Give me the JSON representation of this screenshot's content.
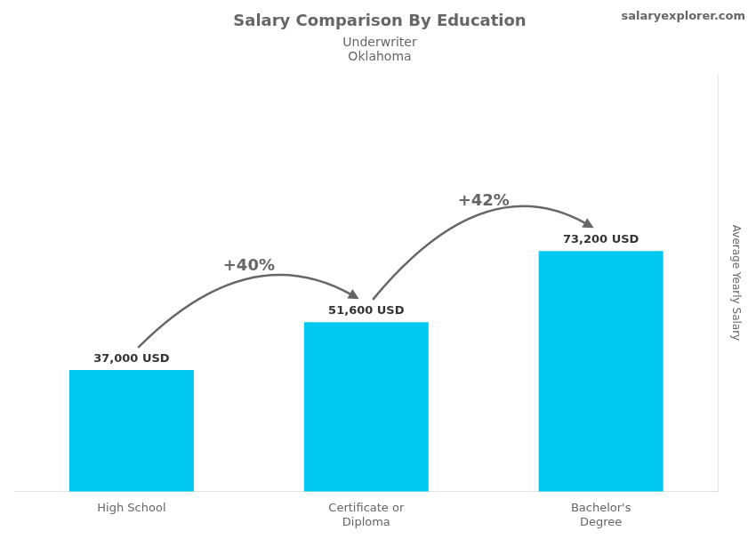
{
  "chart_data": {
    "type": "bar",
    "title": "Salary Comparison By Education",
    "subtitle": [
      "Underwriter",
      "Oklahoma"
    ],
    "categories": [
      "High School",
      "Certificate or\nDiploma",
      "Bachelor's\nDegree"
    ],
    "values": [
      37000,
      51600,
      73200
    ],
    "value_labels": [
      "37,000 USD",
      "51,600 USD",
      "73,200 USD"
    ],
    "data_labels": true,
    "color": "#00c8f0",
    "y_label": "Average Yearly Salary",
    "ylim": [
      0,
      127100
    ],
    "tick_labels": "x",
    "grid": false,
    "annotations": [
      {
        "text": "+40%",
        "from": 0,
        "to": 1
      },
      {
        "text": "+42%",
        "from": 1,
        "to": 2
      },
      {
        "text": "salaryexplorer.com"
      }
    ]
  }
}
